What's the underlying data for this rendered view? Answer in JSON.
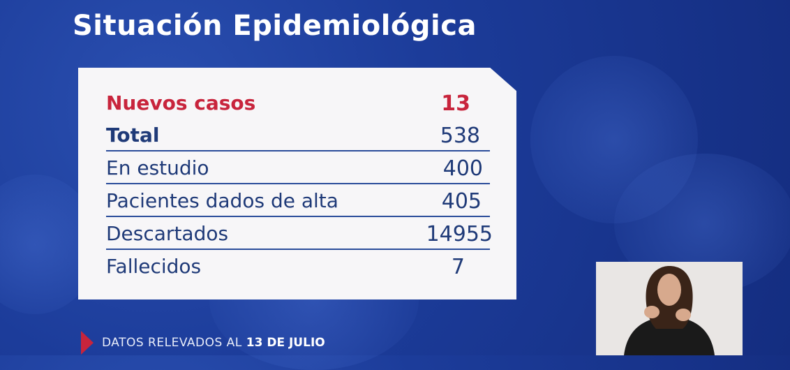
{
  "title": "Situación Epidemiológica",
  "rows": [
    {
      "label": "Nuevos casos",
      "value": "13"
    },
    {
      "label": "Total",
      "value": "538"
    },
    {
      "label": "En estudio",
      "value": "400"
    },
    {
      "label": "Pacientes dados de alta",
      "value": "405"
    },
    {
      "label": "Descartados",
      "value": "14955"
    },
    {
      "label": "Fallecidos",
      "value": "7"
    }
  ],
  "footer": {
    "prefix": "DATOS RELEVADOS AL",
    "date": "13 DE JULIO"
  },
  "colors": {
    "background": "#1c3c9a",
    "accent_red": "#c8243c",
    "text_blue": "#1f3a78",
    "card": "#f7f6f8"
  },
  "icons": [
    "play-triangle-icon"
  ]
}
